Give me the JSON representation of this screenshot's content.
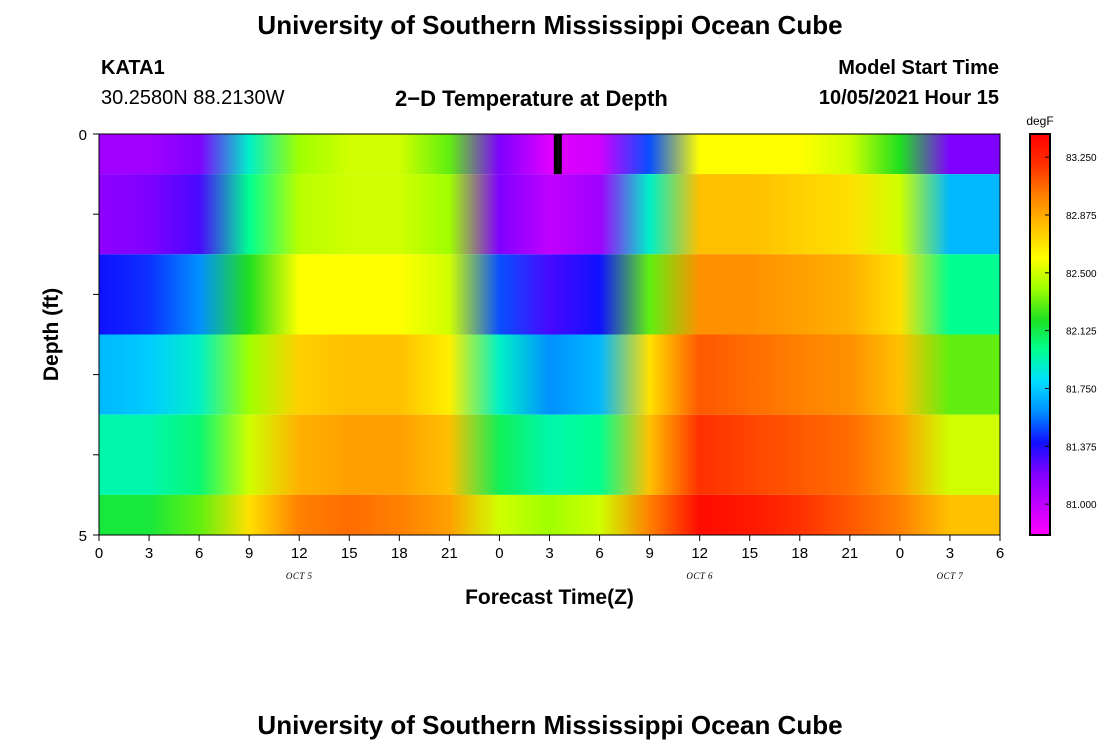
{
  "page": {
    "title_top": "University of Southern Mississippi Ocean Cube",
    "title_bottom": "University of Southern Mississippi Ocean Cube",
    "station_id": "KATA1",
    "coordinates": "30.2580N  88.2130W",
    "model_label": "Model Start Time",
    "model_start": "10/05/2021 Hour 15"
  },
  "chart_data": {
    "type": "heatmap",
    "title": "2−D Temperature at Depth",
    "xlabel": "Forecast Time(Z)",
    "ylabel": "Depth (ft)",
    "y_tick_labels": [
      "0",
      "5"
    ],
    "ylim": [
      0,
      5
    ],
    "x_tick_labels": [
      "0",
      "3",
      "6",
      "9",
      "12",
      "15",
      "18",
      "21",
      "0",
      "3",
      "6",
      "9",
      "12",
      "15",
      "18",
      "21",
      "0",
      "3",
      "6"
    ],
    "date_labels": [
      {
        "label": "OCT 5",
        "at_hour": 12
      },
      {
        "label": "OCT 6",
        "at_hour": 36
      },
      {
        "label": "OCT 7",
        "at_hour": 51
      }
    ],
    "xlim_hours": [
      0,
      54
    ],
    "current_time_marker_hour": 27.5,
    "colorbar": {
      "unit": "degF",
      "ticks": [
        "83.250",
        "82.875",
        "82.500",
        "82.125",
        "81.750",
        "81.375",
        "81.000"
      ],
      "range": [
        80.8,
        83.4
      ],
      "colors": [
        "#ff00ff",
        "#c000ff",
        "#7f00ff",
        "#1010ff",
        "#0090ff",
        "#00e0ff",
        "#00ff90",
        "#20e020",
        "#a0ff00",
        "#ffff00",
        "#ffc000",
        "#ff8000",
        "#ff3000",
        "#ff0000"
      ]
    },
    "hours": [
      0,
      3,
      6,
      9,
      12,
      15,
      18,
      21,
      24,
      27,
      30,
      33,
      36,
      39,
      42,
      45,
      48,
      51,
      54
    ],
    "depth_layers": [
      {
        "depth_range": [
          0,
          0.5
        ],
        "values": [
          81.1,
          81.1,
          81.2,
          81.9,
          82.4,
          82.5,
          82.5,
          82.3,
          81.2,
          80.9,
          80.95,
          81.5,
          82.6,
          82.6,
          82.6,
          82.5,
          82.2,
          81.2,
          81.2
        ]
      },
      {
        "depth_range": [
          0.5,
          1.5
        ],
        "values": [
          81.15,
          81.2,
          81.3,
          82.0,
          82.45,
          82.5,
          82.5,
          82.4,
          81.2,
          81.0,
          81.1,
          81.9,
          82.8,
          82.8,
          82.75,
          82.7,
          82.5,
          81.7,
          81.7
        ]
      },
      {
        "depth_range": [
          1.5,
          2.5
        ],
        "values": [
          81.4,
          81.45,
          81.6,
          82.2,
          82.6,
          82.6,
          82.6,
          82.5,
          81.5,
          81.3,
          81.4,
          82.3,
          82.95,
          82.95,
          82.9,
          82.85,
          82.7,
          82.0,
          82.0
        ]
      },
      {
        "depth_range": [
          2.5,
          3.5
        ],
        "values": [
          81.7,
          81.75,
          81.9,
          82.4,
          82.75,
          82.8,
          82.8,
          82.65,
          81.9,
          81.6,
          81.7,
          82.7,
          83.1,
          83.05,
          83.0,
          82.95,
          82.8,
          82.3,
          82.3
        ]
      },
      {
        "depth_range": [
          3.5,
          4.5
        ],
        "values": [
          81.95,
          81.95,
          82.05,
          82.5,
          82.85,
          82.9,
          82.9,
          82.8,
          82.1,
          81.95,
          82.0,
          82.8,
          83.2,
          83.15,
          83.1,
          83.05,
          82.9,
          82.5,
          82.5
        ]
      },
      {
        "depth_range": [
          4.5,
          5.0
        ],
        "values": [
          82.15,
          82.15,
          82.3,
          82.7,
          83.0,
          83.05,
          83.0,
          82.9,
          82.5,
          82.4,
          82.5,
          83.0,
          83.35,
          83.3,
          83.2,
          83.1,
          83.0,
          82.8,
          82.8
        ]
      }
    ]
  }
}
